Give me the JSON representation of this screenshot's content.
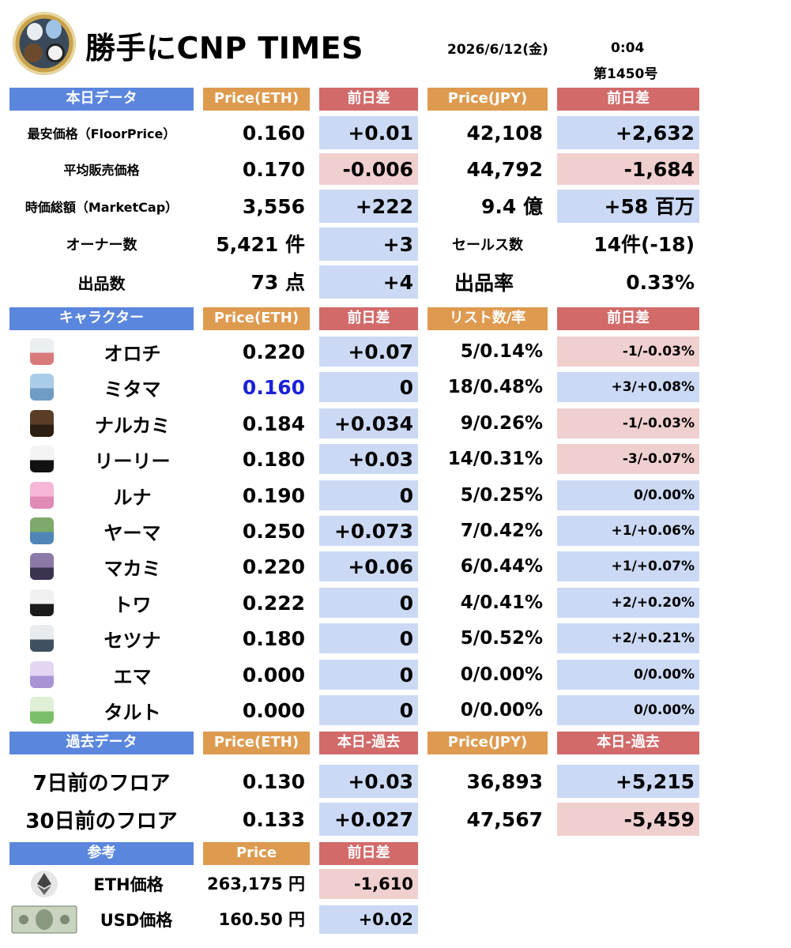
{
  "header": {
    "title": "勝手にCNP TIMES",
    "date": "2026/6/12(金)",
    "time": "0:04",
    "issue": "第1450号"
  },
  "today": {
    "headers": [
      "本日データ",
      "Price(ETH)",
      "前日差",
      "Price(JPY)",
      "前日差"
    ],
    "rows": [
      {
        "label": "最安価格（FloorPrice）",
        "eth": "0.160",
        "eth_diff": "+0.01",
        "jpy": "42,108",
        "jpy_diff": "+2,632"
      },
      {
        "label": "平均販売価格",
        "eth": "0.170",
        "eth_diff": "-0.006",
        "jpy": "44,792",
        "jpy_diff": "-1,684"
      },
      {
        "label": "時価総額（MarketCap）",
        "eth": "3,556",
        "eth_diff": "+222",
        "jpy": "9.4 億",
        "jpy_diff": "+58 百万"
      }
    ],
    "owners": {
      "label": "オーナー数",
      "value": "5,421 件",
      "diff": "+3",
      "sales_label": "セールス数",
      "sales_value": "14件(-18)"
    },
    "listings": {
      "label": "出品数",
      "value": "73 点",
      "diff": "+4",
      "rate_label": "出品率",
      "rate_value": "0.33%"
    }
  },
  "characters": {
    "headers": [
      "キャラクター",
      "Price(ETH)",
      "前日差",
      "リスト数/率",
      "前日差"
    ],
    "rows": [
      {
        "icon": "orochi-icon",
        "name": "オロチ",
        "price": "0.220",
        "diff": "+0.07",
        "list": "5/0.14%",
        "list_diff": "-1/-0.03%",
        "neg": true
      },
      {
        "icon": "mitama-icon",
        "name": "ミタマ",
        "price": "0.160",
        "diff": "0",
        "list": "18/0.48%",
        "list_diff": "+3/+0.08%",
        "neg": false,
        "highlight": true
      },
      {
        "icon": "narukami-icon",
        "name": "ナルカミ",
        "price": "0.184",
        "diff": "+0.034",
        "list": "9/0.26%",
        "list_diff": "-1/-0.03%",
        "neg": true
      },
      {
        "icon": "leelee-icon",
        "name": "リーリー",
        "price": "0.180",
        "diff": "+0.03",
        "list": "14/0.31%",
        "list_diff": "-3/-0.07%",
        "neg": true
      },
      {
        "icon": "luna-icon",
        "name": "ルナ",
        "price": "0.190",
        "diff": "0",
        "list": "5/0.25%",
        "list_diff": "0/0.00%",
        "neg": false
      },
      {
        "icon": "yama-icon",
        "name": "ヤーマ",
        "price": "0.250",
        "diff": "+0.073",
        "list": "7/0.42%",
        "list_diff": "+1/+0.06%",
        "neg": false
      },
      {
        "icon": "makami-icon",
        "name": "マカミ",
        "price": "0.220",
        "diff": "+0.06",
        "list": "6/0.44%",
        "list_diff": "+1/+0.07%",
        "neg": false
      },
      {
        "icon": "towa-icon",
        "name": "トワ",
        "price": "0.222",
        "diff": "0",
        "list": "4/0.41%",
        "list_diff": "+2/+0.20%",
        "neg": false
      },
      {
        "icon": "setsuna-icon",
        "name": "セツナ",
        "price": "0.180",
        "diff": "0",
        "list": "5/0.52%",
        "list_diff": "+2/+0.21%",
        "neg": false
      },
      {
        "icon": "ema-icon",
        "name": "エマ",
        "price": "0.000",
        "diff": "0",
        "list": "0/0.00%",
        "list_diff": "0/0.00%",
        "neg": false
      },
      {
        "icon": "taruto-icon",
        "name": "タルト",
        "price": "0.000",
        "diff": "0",
        "list": "0/0.00%",
        "list_diff": "0/0.00%",
        "neg": false
      }
    ]
  },
  "past": {
    "headers": [
      "過去データ",
      "Price(ETH)",
      "本日-過去",
      "Price(JPY)",
      "本日-過去"
    ],
    "rows": [
      {
        "label": "7日前のフロア",
        "eth": "0.130",
        "eth_diff": "+0.03",
        "jpy": "36,893",
        "jpy_diff": "+5,215",
        "neg": false
      },
      {
        "label": "30日前のフロア",
        "eth": "0.133",
        "eth_diff": "+0.027",
        "jpy": "47,567",
        "jpy_diff": "-5,459",
        "neg": true
      }
    ]
  },
  "reference": {
    "headers": [
      "参考",
      "Price",
      "前日差"
    ],
    "rows": [
      {
        "icon": "ethereum-icon",
        "label": "ETH価格",
        "price": "263,175 円",
        "diff": "-1,610",
        "neg": true
      },
      {
        "icon": "dollar-bill-icon",
        "label": "USD価格",
        "price": "160.50 円",
        "diff": "+0.02",
        "neg": false
      }
    ]
  },
  "colors": {
    "header_blue": "#5b86dd",
    "header_orange": "#de9a4f",
    "header_red": "#d26a6a",
    "positive_cell": "#cbd9f4",
    "negative_cell": "#f0cfcf",
    "highlight_price": "#1a22d6"
  }
}
